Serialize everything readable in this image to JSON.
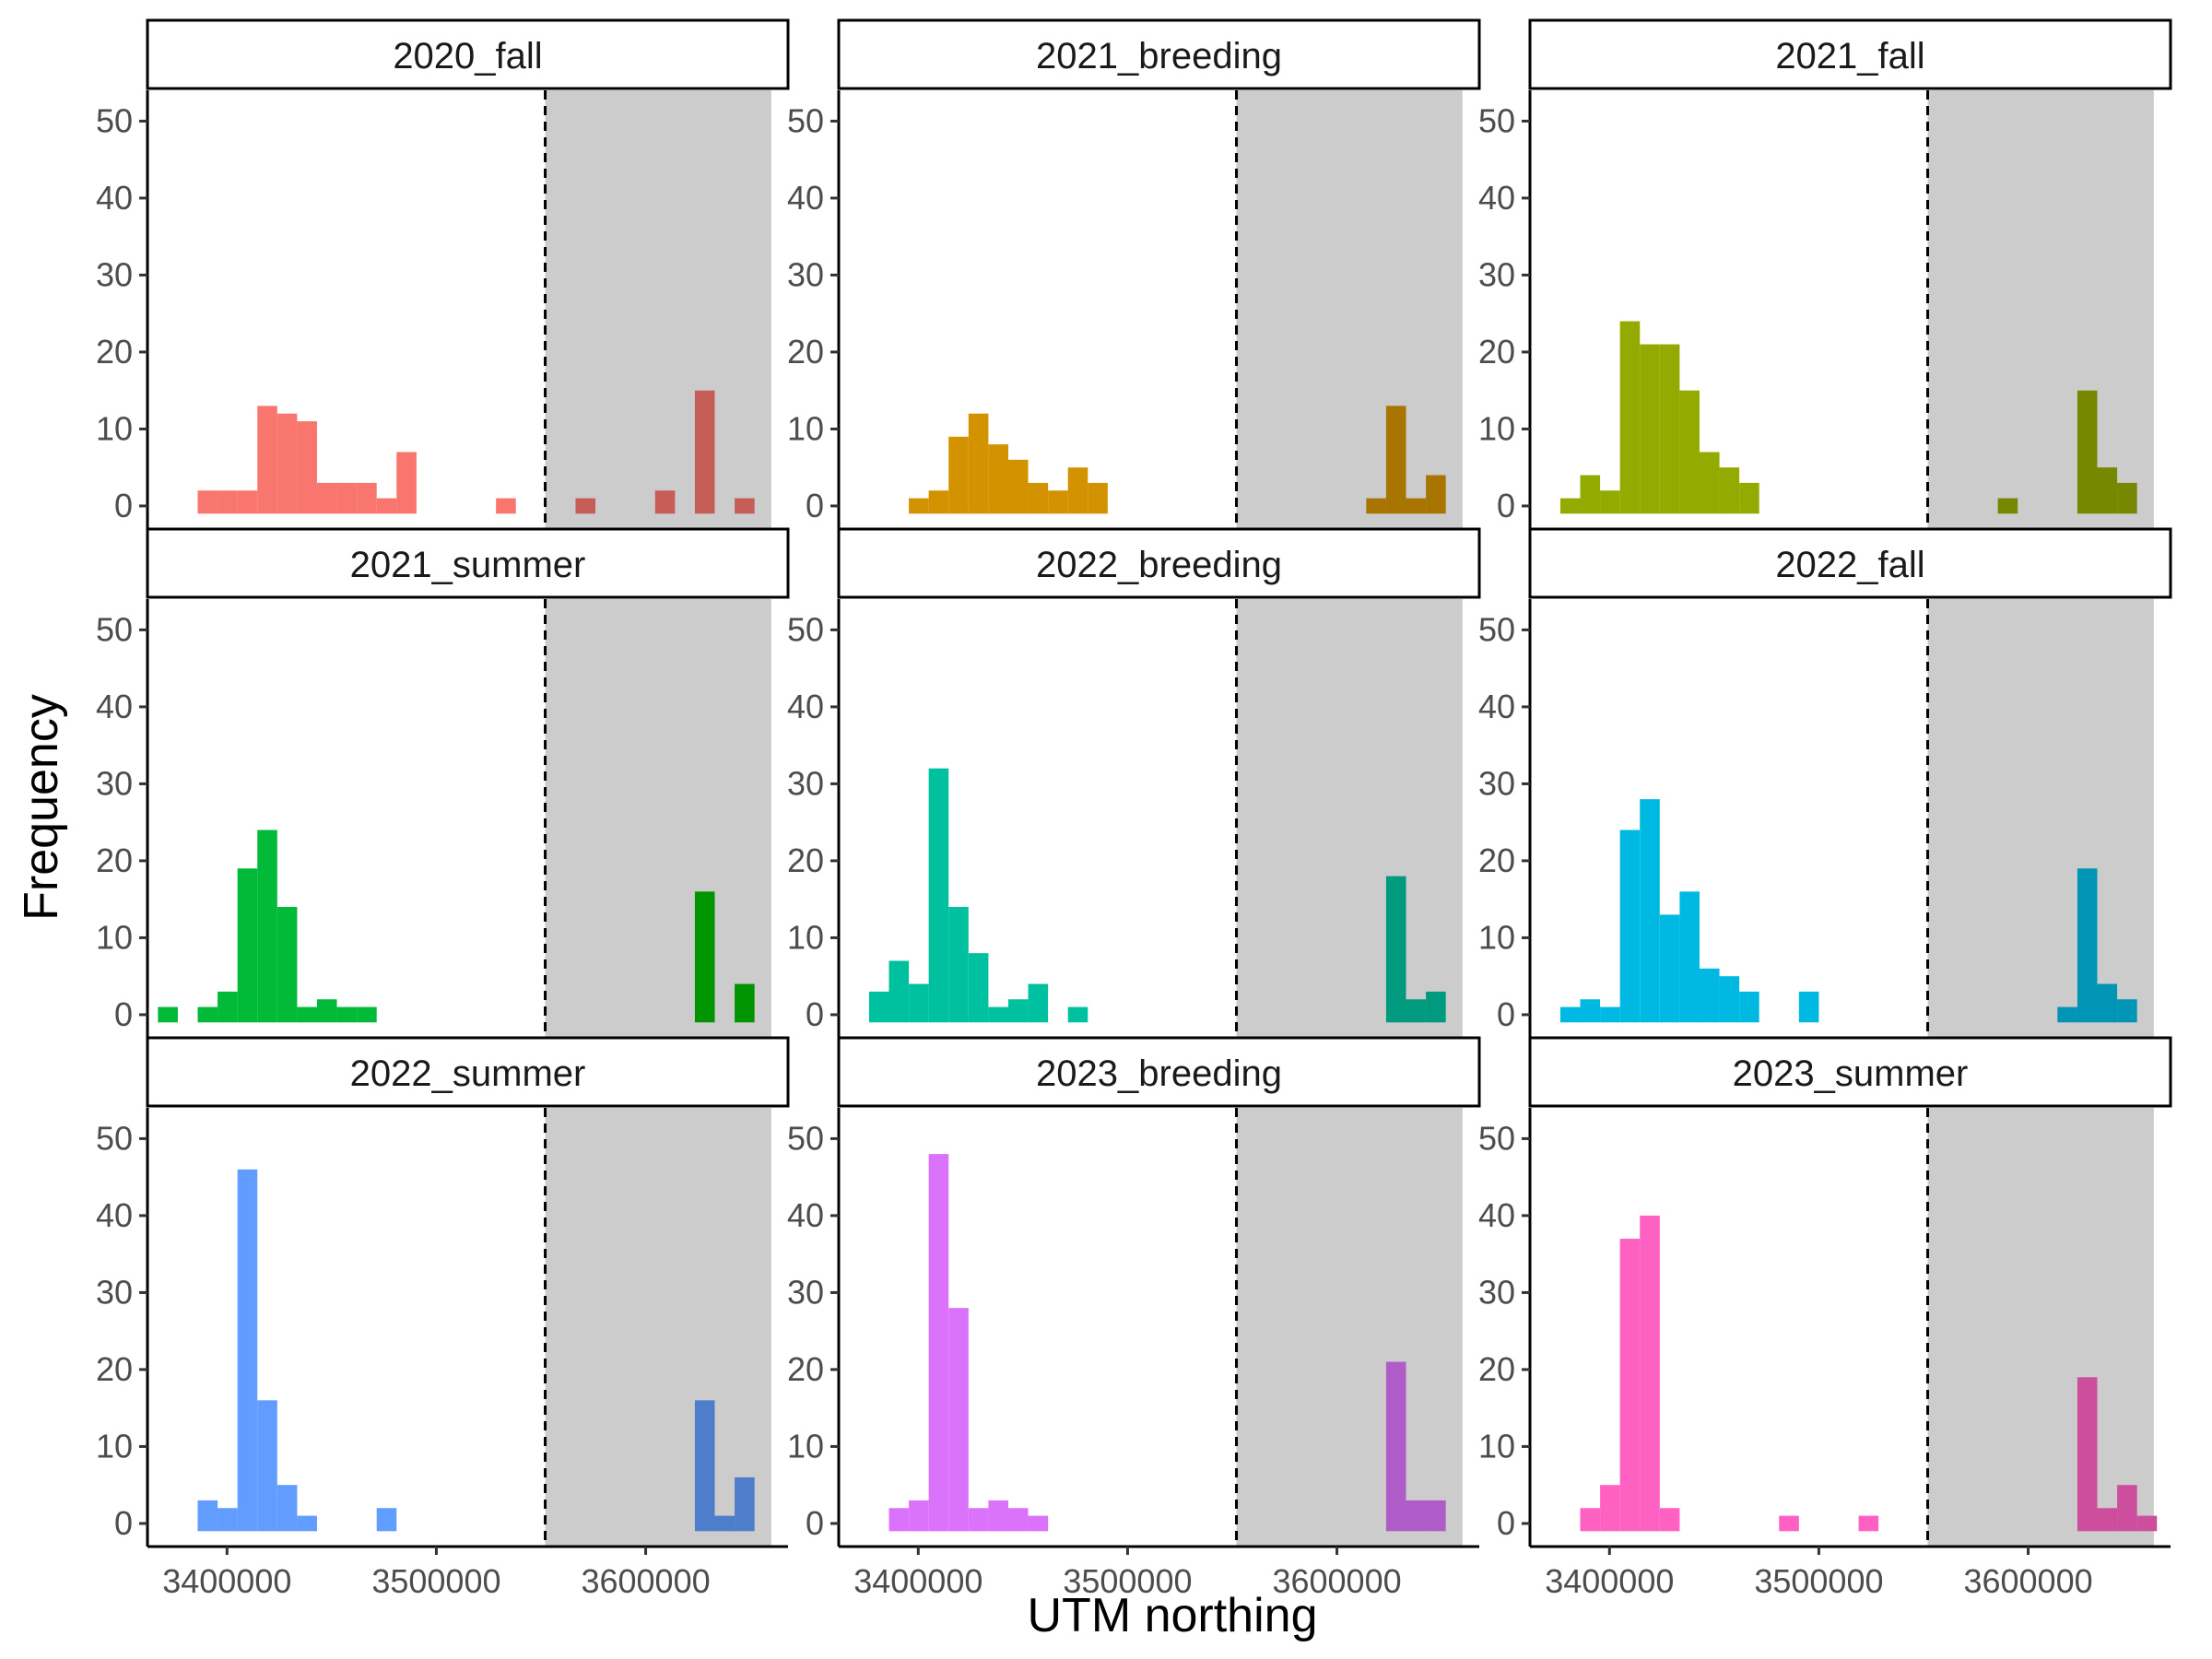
{
  "chart_data": {
    "type": "bar",
    "xlabel": "UTM northing",
    "ylabel": "Frequency",
    "xlim": [
      3362000,
      3668000
    ],
    "ylim": [
      -3,
      54
    ],
    "y_ticks": [
      0,
      10,
      20,
      30,
      40,
      50
    ],
    "x_ticks": [
      3400000,
      3500000,
      3600000
    ],
    "x_tick_labels": [
      "3400000",
      "3500000",
      "3600000"
    ],
    "bin_width": 9500,
    "threshold": 3552000,
    "shaded_region": [
      3552000,
      3660000
    ],
    "shade_color": "#cccccc",
    "grid": false,
    "legend": "none",
    "panels": [
      {
        "label": "2020_fall",
        "color": "#F8766D",
        "dark_color": "#C65E57",
        "bins": [
          {
            "x": 3386000,
            "count": 2
          },
          {
            "x": 3395500,
            "count": 2
          },
          {
            "x": 3405000,
            "count": 2
          },
          {
            "x": 3414500,
            "count": 13
          },
          {
            "x": 3424000,
            "count": 12
          },
          {
            "x": 3433500,
            "count": 11
          },
          {
            "x": 3443000,
            "count": 3
          },
          {
            "x": 3452500,
            "count": 3
          },
          {
            "x": 3462000,
            "count": 3
          },
          {
            "x": 3471500,
            "count": 1
          },
          {
            "x": 3481000,
            "count": 7
          },
          {
            "x": 3528500,
            "count": 1
          },
          {
            "x": 3566500,
            "count": 1
          },
          {
            "x": 3604500,
            "count": 2
          },
          {
            "x": 3623500,
            "count": 15
          },
          {
            "x": 3642500,
            "count": 1
          }
        ]
      },
      {
        "label": "2021_breeding",
        "color": "#D39200",
        "dark_color": "#A87500",
        "bins": [
          {
            "x": 3395500,
            "count": 1
          },
          {
            "x": 3405000,
            "count": 2
          },
          {
            "x": 3414500,
            "count": 9
          },
          {
            "x": 3424000,
            "count": 12
          },
          {
            "x": 3433500,
            "count": 8
          },
          {
            "x": 3443000,
            "count": 6
          },
          {
            "x": 3452500,
            "count": 3
          },
          {
            "x": 3462000,
            "count": 2
          },
          {
            "x": 3471500,
            "count": 5
          },
          {
            "x": 3481000,
            "count": 3
          },
          {
            "x": 3614000,
            "count": 1
          },
          {
            "x": 3623500,
            "count": 13
          },
          {
            "x": 3633000,
            "count": 1
          },
          {
            "x": 3642500,
            "count": 4
          }
        ]
      },
      {
        "label": "2021_fall",
        "color": "#93AA00",
        "dark_color": "#758800",
        "bins": [
          {
            "x": 3376500,
            "count": 1
          },
          {
            "x": 3386000,
            "count": 4
          },
          {
            "x": 3395500,
            "count": 2
          },
          {
            "x": 3405000,
            "count": 24
          },
          {
            "x": 3414500,
            "count": 21
          },
          {
            "x": 3424000,
            "count": 21
          },
          {
            "x": 3433500,
            "count": 15
          },
          {
            "x": 3443000,
            "count": 7
          },
          {
            "x": 3452500,
            "count": 5
          },
          {
            "x": 3462000,
            "count": 3
          },
          {
            "x": 3585500,
            "count": 1
          },
          {
            "x": 3623500,
            "count": 15
          },
          {
            "x": 3633000,
            "count": 5
          },
          {
            "x": 3642500,
            "count": 3
          }
        ]
      },
      {
        "label": "2021_summer",
        "color": "#00BA38",
        "dark_color": "#009500",
        "bins": [
          {
            "x": 3367000,
            "count": 1
          },
          {
            "x": 3386000,
            "count": 1
          },
          {
            "x": 3395500,
            "count": 3
          },
          {
            "x": 3405000,
            "count": 19
          },
          {
            "x": 3414500,
            "count": 24
          },
          {
            "x": 3424000,
            "count": 14
          },
          {
            "x": 3433500,
            "count": 1
          },
          {
            "x": 3443000,
            "count": 2
          },
          {
            "x": 3452500,
            "count": 1
          },
          {
            "x": 3462000,
            "count": 1
          },
          {
            "x": 3623500,
            "count": 16
          },
          {
            "x": 3642500,
            "count": 4
          }
        ]
      },
      {
        "label": "2022_breeding",
        "color": "#00C19F",
        "dark_color": "#009A7F",
        "bins": [
          {
            "x": 3376500,
            "count": 3
          },
          {
            "x": 3386000,
            "count": 7
          },
          {
            "x": 3395500,
            "count": 4
          },
          {
            "x": 3405000,
            "count": 32
          },
          {
            "x": 3414500,
            "count": 14
          },
          {
            "x": 3424000,
            "count": 8
          },
          {
            "x": 3433500,
            "count": 1
          },
          {
            "x": 3443000,
            "count": 2
          },
          {
            "x": 3452500,
            "count": 4
          },
          {
            "x": 3471500,
            "count": 1
          },
          {
            "x": 3623500,
            "count": 18
          },
          {
            "x": 3633000,
            "count": 2
          },
          {
            "x": 3642500,
            "count": 3
          }
        ]
      },
      {
        "label": "2022_fall",
        "color": "#00B9E3",
        "dark_color": "#0094B5",
        "bins": [
          {
            "x": 3376500,
            "count": 1
          },
          {
            "x": 3386000,
            "count": 2
          },
          {
            "x": 3395500,
            "count": 1
          },
          {
            "x": 3405000,
            "count": 24
          },
          {
            "x": 3414500,
            "count": 28
          },
          {
            "x": 3424000,
            "count": 13
          },
          {
            "x": 3433500,
            "count": 16
          },
          {
            "x": 3443000,
            "count": 6
          },
          {
            "x": 3452500,
            "count": 5
          },
          {
            "x": 3462000,
            "count": 3
          },
          {
            "x": 3490500,
            "count": 3
          },
          {
            "x": 3614000,
            "count": 1
          },
          {
            "x": 3623500,
            "count": 19
          },
          {
            "x": 3633000,
            "count": 4
          },
          {
            "x": 3642500,
            "count": 2
          }
        ]
      },
      {
        "label": "2022_summer",
        "color": "#619CFF",
        "dark_color": "#4E7DCC",
        "bins": [
          {
            "x": 3386000,
            "count": 3
          },
          {
            "x": 3395500,
            "count": 2
          },
          {
            "x": 3405000,
            "count": 46
          },
          {
            "x": 3414500,
            "count": 16
          },
          {
            "x": 3424000,
            "count": 5
          },
          {
            "x": 3433500,
            "count": 1
          },
          {
            "x": 3471500,
            "count": 2
          },
          {
            "x": 3623500,
            "count": 16
          },
          {
            "x": 3633000,
            "count": 1
          },
          {
            "x": 3642500,
            "count": 6
          }
        ]
      },
      {
        "label": "2023_breeding",
        "color": "#DB72FB",
        "dark_color": "#AF5BC8",
        "bins": [
          {
            "x": 3386000,
            "count": 2
          },
          {
            "x": 3395500,
            "count": 3
          },
          {
            "x": 3405000,
            "count": 48
          },
          {
            "x": 3414500,
            "count": 28
          },
          {
            "x": 3424000,
            "count": 2
          },
          {
            "x": 3433500,
            "count": 3
          },
          {
            "x": 3443000,
            "count": 2
          },
          {
            "x": 3452500,
            "count": 1
          },
          {
            "x": 3623500,
            "count": 21
          },
          {
            "x": 3633000,
            "count": 3
          },
          {
            "x": 3642500,
            "count": 3
          }
        ]
      },
      {
        "label": "2023_summer",
        "color": "#FF61C3",
        "dark_color": "#CC4E9C",
        "bins": [
          {
            "x": 3386000,
            "count": 2
          },
          {
            "x": 3395500,
            "count": 5
          },
          {
            "x": 3405000,
            "count": 37
          },
          {
            "x": 3414500,
            "count": 40
          },
          {
            "x": 3424000,
            "count": 2
          },
          {
            "x": 3481000,
            "count": 1
          },
          {
            "x": 3519000,
            "count": 1
          },
          {
            "x": 3623500,
            "count": 19
          },
          {
            "x": 3633000,
            "count": 2
          },
          {
            "x": 3642500,
            "count": 5
          },
          {
            "x": 3652000,
            "count": 1
          }
        ]
      }
    ]
  }
}
